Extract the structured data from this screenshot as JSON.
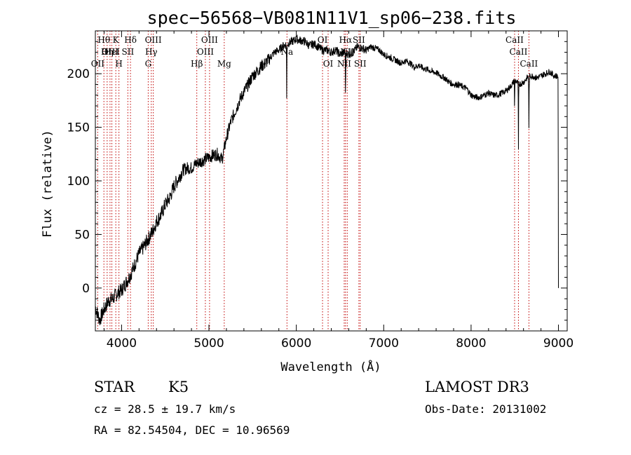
{
  "chart_data": {
    "type": "line",
    "title": "spec−56568−VB081N11V1_sp06−238.fits",
    "xlabel": "Wavelength (Å)",
    "ylabel": "Flux (relative)",
    "xlim": [
      3700,
      9100
    ],
    "ylim": [
      -40,
      240
    ],
    "x_ticks": [
      4000,
      5000,
      6000,
      7000,
      8000,
      9000
    ],
    "y_ticks": [
      0,
      50,
      100,
      150,
      200
    ],
    "spectrum": {
      "name": "flux",
      "x": [
        3700,
        3750,
        3800,
        3850,
        3900,
        3950,
        4000,
        4050,
        4100,
        4150,
        4200,
        4250,
        4300,
        4350,
        4400,
        4450,
        4500,
        4550,
        4600,
        4650,
        4700,
        4750,
        4800,
        4850,
        4900,
        4950,
        5000,
        5050,
        5100,
        5150,
        5200,
        5250,
        5300,
        5350,
        5400,
        5450,
        5500,
        5550,
        5600,
        5650,
        5700,
        5750,
        5800,
        5850,
        5900,
        5950,
        6000,
        6050,
        6100,
        6150,
        6200,
        6250,
        6300,
        6350,
        6400,
        6450,
        6500,
        6550,
        6600,
        6650,
        6700,
        6750,
        6800,
        6850,
        6900,
        6950,
        7000,
        7050,
        7100,
        7150,
        7200,
        7250,
        7300,
        7350,
        7400,
        7450,
        7500,
        7550,
        7600,
        7650,
        7700,
        7750,
        7800,
        7850,
        7900,
        7950,
        8000,
        8050,
        8100,
        8150,
        8200,
        8250,
        8300,
        8350,
        8400,
        8450,
        8500,
        8550,
        8600,
        8650,
        8700,
        8750,
        8800,
        8850,
        8900,
        8950,
        9000
      ],
      "y": [
        -18,
        -30,
        -20,
        -12,
        -10,
        -5,
        -2,
        5,
        12,
        22,
        32,
        38,
        45,
        52,
        62,
        68,
        78,
        84,
        95,
        102,
        110,
        112,
        112,
        116,
        118,
        120,
        122,
        124,
        125,
        120,
        140,
        155,
        165,
        175,
        183,
        190,
        198,
        202,
        207,
        210,
        215,
        220,
        222,
        226,
        228,
        230,
        232,
        231,
        230,
        226,
        228,
        225,
        222,
        222,
        220,
        222,
        218,
        220,
        218,
        220,
        225,
        224,
        222,
        225,
        224,
        222,
        218,
        216,
        214,
        212,
        210,
        212,
        210,
        206,
        208,
        205,
        204,
        202,
        201,
        198,
        196,
        192,
        190,
        190,
        188,
        186,
        180,
        178,
        178,
        180,
        182,
        180,
        180,
        182,
        184,
        188,
        194,
        190,
        192,
        197,
        198,
        196,
        198,
        200,
        202,
        198,
        198
      ],
      "absorption_features": [
        {
          "x": 5890,
          "depth": 52
        },
        {
          "x": 6563,
          "depth": 48
        },
        {
          "x": 8498,
          "depth": 30
        },
        {
          "x": 8542,
          "depth": 62
        },
        {
          "x": 8662,
          "depth": 50
        },
        {
          "x": 9000,
          "depth": 200
        }
      ]
    },
    "line_markers": [
      {
        "x": 3727,
        "row": 3,
        "label": "OII"
      },
      {
        "x": 3798,
        "row": 1,
        "label": "Hθ"
      },
      {
        "x": 3835,
        "row": 2,
        "label": "Hη"
      },
      {
        "x": 3868,
        "row": 2,
        "label": "OIII"
      },
      {
        "x": 3889,
        "row": 2,
        "label": "HeI"
      },
      {
        "x": 3934,
        "row": 1,
        "label": "K"
      },
      {
        "x": 3970,
        "row": 3,
        "label": "H"
      },
      {
        "x": 4072,
        "row": 2,
        "label": "SII"
      },
      {
        "x": 4102,
        "row": 1,
        "label": "Hδ"
      },
      {
        "x": 4305,
        "row": 3,
        "label": "G"
      },
      {
        "x": 4340,
        "row": 2,
        "label": "Hγ"
      },
      {
        "x": 4363,
        "row": 1,
        "label": "OIII"
      },
      {
        "x": 4861,
        "row": 3,
        "label": "Hβ"
      },
      {
        "x": 4959,
        "row": 2,
        "label": "OIII"
      },
      {
        "x": 5007,
        "row": 1,
        "label": "OIII"
      },
      {
        "x": 5175,
        "row": 3,
        "label": "Mg"
      },
      {
        "x": 5893,
        "row": 2,
        "label": "Na"
      },
      {
        "x": 6300,
        "row": 1,
        "label": "OI"
      },
      {
        "x": 6364,
        "row": 3,
        "label": "OI"
      },
      {
        "x": 6548,
        "row": 3,
        "label": "NII"
      },
      {
        "x": 6563,
        "row": 1,
        "label": "Hα"
      },
      {
        "x": 6583,
        "row": 2,
        "label": "NII"
      },
      {
        "x": 6716,
        "row": 1,
        "label": "SII"
      },
      {
        "x": 6731,
        "row": 3,
        "label": "SII"
      },
      {
        "x": 8498,
        "row": 1,
        "label": "CaII"
      },
      {
        "x": 8542,
        "row": 2,
        "label": "CaII"
      },
      {
        "x": 8662,
        "row": 3,
        "label": "CaII"
      }
    ]
  },
  "info": {
    "class": "STAR",
    "subclass": "K5",
    "survey": "LAMOST DR3",
    "cz": "cz = 28.5 ± 19.7 km/s",
    "obs_date": "Obs-Date: 20131002",
    "coords": "RA =  82.54504, DEC =  10.96569"
  },
  "colors": {
    "axis": "#000000",
    "spectrum": "#000000",
    "marker_line": "#c00000",
    "background": "#ffffff"
  }
}
